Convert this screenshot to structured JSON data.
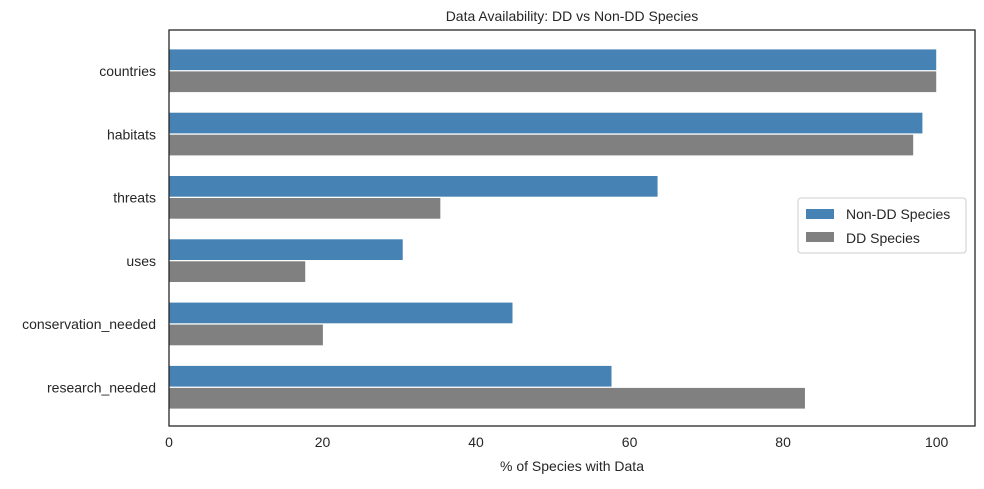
{
  "chart_data": {
    "type": "bar",
    "orientation": "horizontal",
    "title": "Data Availability: DD vs Non-DD Species",
    "xlabel": "% of Species with Data",
    "ylabel": "",
    "categories": [
      "countries",
      "habitats",
      "threats",
      "uses",
      "conservation_needed",
      "research_needed"
    ],
    "series": [
      {
        "name": "Non-DD Species",
        "color": "#4682b4",
        "values": [
          100,
          98.2,
          63.7,
          30.5,
          44.8,
          57.7
        ]
      },
      {
        "name": "DD Species",
        "color": "#808080",
        "values": [
          100,
          97.0,
          35.4,
          17.8,
          20.1,
          82.9
        ]
      }
    ],
    "xlim": [
      0,
      105
    ],
    "xticks": [
      "0",
      "20",
      "40",
      "60",
      "80",
      "100"
    ],
    "grid": false,
    "legend": "center-right"
  }
}
